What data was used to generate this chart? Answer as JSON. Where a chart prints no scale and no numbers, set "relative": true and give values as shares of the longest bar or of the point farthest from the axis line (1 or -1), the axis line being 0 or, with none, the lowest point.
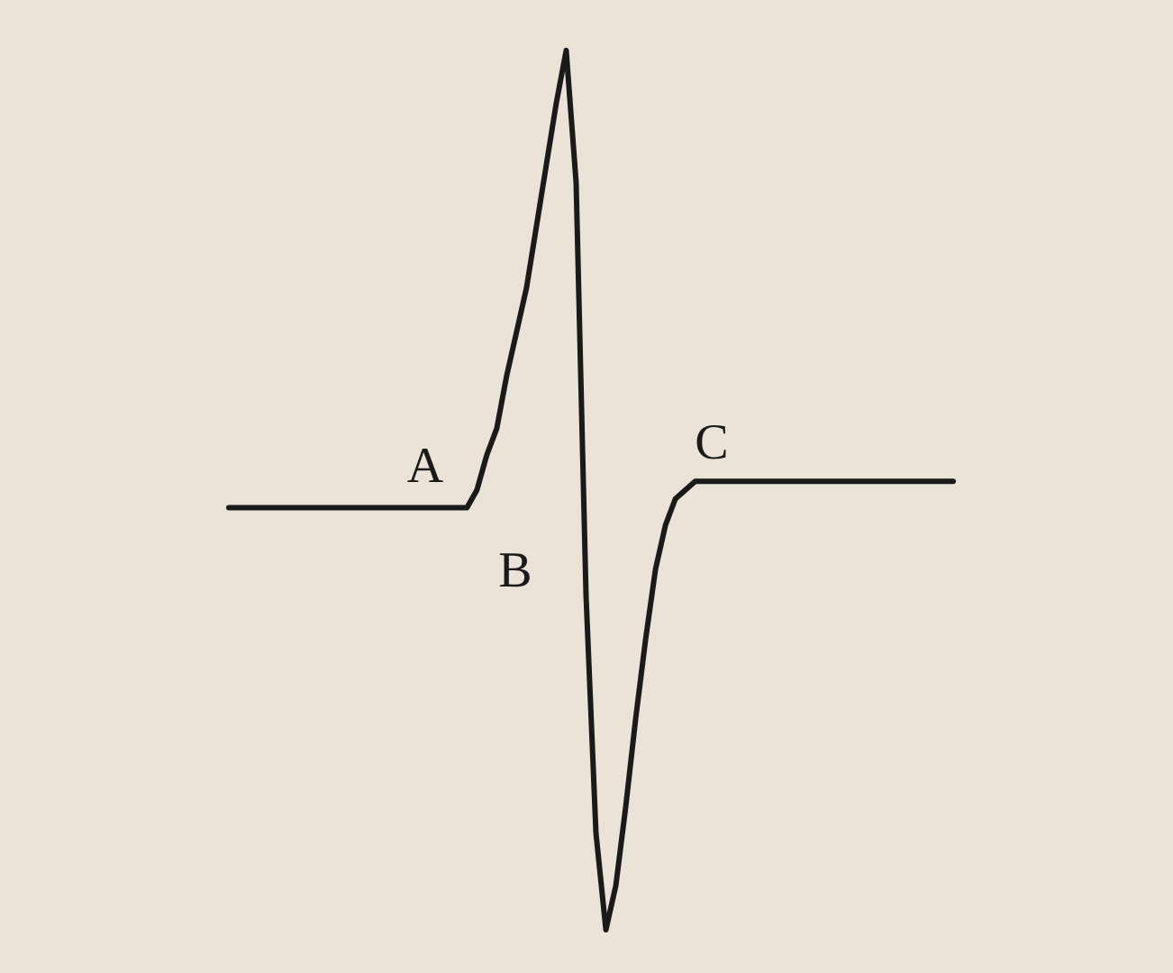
{
  "chart_data": {
    "type": "line",
    "relative": true,
    "tick_labels": false,
    "marker": "none",
    "line_style": "solid",
    "categories": [
      null,
      null,
      null,
      null,
      null,
      null,
      null,
      null,
      null,
      null,
      null,
      null,
      null,
      null,
      null,
      null,
      null,
      null,
      null,
      null,
      null,
      null,
      null,
      null,
      null,
      null,
      null,
      null,
      null,
      null,
      null,
      null,
      null,
      null,
      null,
      null,
      null,
      null,
      null,
      null,
      null,
      null,
      null,
      null,
      null,
      null,
      null,
      null,
      null,
      null,
      null,
      null,
      null,
      null,
      null,
      null,
      null,
      null,
      null,
      null,
      null,
      null,
      null,
      null,
      null,
      null,
      null,
      null,
      null,
      null,
      null,
      null,
      null,
      null
    ],
    "series": [
      {
        "color": "#1a1a1a",
        "values": [
          0.48,
          0.48,
          0.48,
          0.48,
          0.48,
          0.48,
          0.48,
          0.48,
          0.48,
          0.48,
          0.48,
          0.48,
          0.48,
          0.48,
          0.48,
          0.48,
          0.48,
          0.48,
          0.48,
          0.48,
          0.48,
          0.48,
          0.48,
          0.48,
          0.48,
          0.5,
          0.54,
          0.57,
          0.63,
          0.68,
          0.73,
          0.8,
          0.87,
          0.94,
          1,
          0.85,
          0.38,
          0.11,
          0,
          0.05,
          0.14,
          0.24,
          0.33,
          0.41,
          0.46,
          0.49,
          0.5,
          0.51,
          0.51,
          0.51,
          0.51,
          0.51,
          0.51,
          0.51,
          0.51,
          0.51,
          0.51,
          0.51,
          0.51,
          0.51,
          0.51,
          0.51,
          0.51,
          0.51,
          0.51,
          0.51,
          0.51,
          0.51,
          0.51,
          0.51,
          0.51,
          0.51,
          0.51,
          0.51
        ]
      }
    ],
    "annotations": [
      "A",
      "B",
      "C"
    ]
  }
}
